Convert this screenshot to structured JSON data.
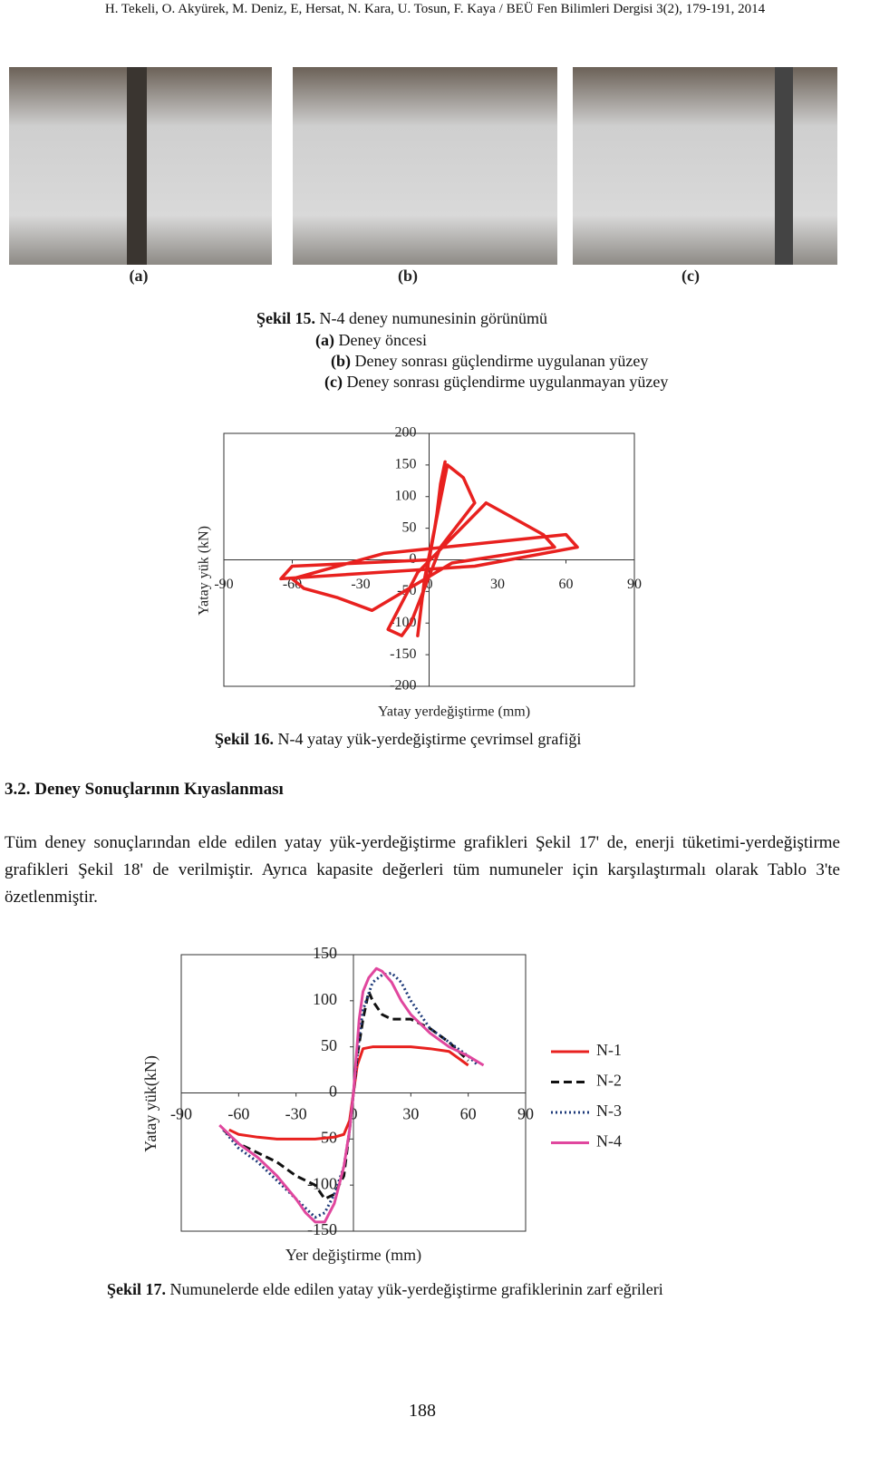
{
  "header": "H. Tekeli, O. Akyürek, M. Deniz, E, Hersat, N. Kara, U. Tosun, F. Kaya / BEÜ Fen Bilimleri Dergisi 3(2), 179-191, 2014",
  "figure15": {
    "panels": [
      "(a)",
      "(b)",
      "(c)"
    ],
    "caption": [
      {
        "label": "Şekil 15.",
        "text": " N-4 deney numunesinin görünümü"
      },
      {
        "label": "(a)",
        "text": " Deney öncesi"
      },
      {
        "label": "(b)",
        "text": " Deney sonrası güçlendirme uygulanan yüzey"
      },
      {
        "label": "(c)",
        "text": " Deney sonrası güçlendirme uygulanmayan yüzey"
      }
    ]
  },
  "chart_data": [
    {
      "type": "line",
      "caption_label": "Şekil 16.",
      "caption": " N-4 yatay yük-yerdeğiştirme çevrimsel grafiği",
      "xlabel": "Yatay yerdeğiştirme (mm)",
      "ylabel": "Yatay yük (kN)",
      "x": [
        0,
        3,
        5,
        7,
        2,
        -3,
        -5,
        -2,
        8,
        15,
        20,
        5,
        -8,
        -12,
        -18,
        -5,
        25,
        40,
        50,
        55,
        10,
        -25,
        -40,
        -55,
        -60,
        -20,
        60,
        65,
        20,
        -65,
        -60,
        0
      ],
      "values": [
        0,
        60,
        120,
        155,
        40,
        -60,
        -120,
        -30,
        150,
        130,
        90,
        20,
        -100,
        -120,
        -110,
        -20,
        90,
        60,
        40,
        20,
        -5,
        -80,
        -60,
        -45,
        -30,
        10,
        40,
        20,
        -10,
        -30,
        -10,
        0
      ],
      "color": "#e8211f",
      "xlim": [
        -90,
        90
      ],
      "xticks": [
        -90,
        -60,
        -30,
        0,
        30,
        60,
        90
      ],
      "ylim": [
        -200,
        200
      ],
      "yticks": [
        -200,
        -150,
        -100,
        -50,
        0,
        50,
        100,
        150,
        200
      ]
    },
    {
      "type": "line",
      "caption_label": "Şekil 17.",
      "caption": " Numunelerde elde edilen yatay yük-yerdeğiştirme grafiklerinin zarf eğrileri",
      "xlabel": "Yer değiştirme  (mm)",
      "ylabel": "Yatay  yük(kN)",
      "legend": "right",
      "xlim": [
        -90,
        90
      ],
      "xticks": [
        -90,
        -60,
        -30,
        0,
        30,
        60,
        90
      ],
      "ylim": [
        -150,
        150
      ],
      "yticks": [
        -150,
        -100,
        -50,
        0,
        50,
        100,
        150
      ],
      "series": [
        {
          "name": "N-1",
          "color": "#e8211f",
          "style": "solid",
          "x": [
            -65,
            -60,
            -50,
            -40,
            -30,
            -20,
            -10,
            -5,
            -2,
            0,
            2,
            5,
            10,
            20,
            30,
            40,
            50,
            60
          ],
          "values": [
            -40,
            -45,
            -48,
            -50,
            -50,
            -50,
            -48,
            -45,
            -30,
            0,
            30,
            48,
            50,
            50,
            50,
            48,
            45,
            30
          ]
        },
        {
          "name": "N-2",
          "color": "#111111",
          "style": "dashed",
          "x": [
            -68,
            -60,
            -50,
            -40,
            -30,
            -20,
            -15,
            -10,
            -5,
            -2,
            0,
            2,
            5,
            8,
            10,
            15,
            20,
            30,
            40,
            50,
            60
          ],
          "values": [
            -40,
            -55,
            -65,
            -75,
            -90,
            -100,
            -115,
            -110,
            -90,
            -40,
            0,
            40,
            80,
            110,
            100,
            85,
            80,
            80,
            70,
            55,
            35
          ]
        },
        {
          "name": "N-3",
          "color": "#1f3b7a",
          "style": "dotted",
          "x": [
            -68,
            -60,
            -50,
            -40,
            -30,
            -25,
            -20,
            -15,
            -10,
            -5,
            -2,
            0,
            3,
            5,
            10,
            15,
            20,
            25,
            30,
            40,
            50,
            60,
            65
          ],
          "values": [
            -40,
            -60,
            -75,
            -95,
            -115,
            -125,
            -135,
            -130,
            -110,
            -80,
            -40,
            0,
            60,
            90,
            120,
            128,
            130,
            120,
            100,
            70,
            55,
            40,
            30
          ]
        },
        {
          "name": "N-4",
          "color": "#e0479e",
          "style": "solid",
          "x": [
            -70,
            -60,
            -50,
            -40,
            -30,
            -25,
            -20,
            -15,
            -10,
            -5,
            -2,
            0,
            3,
            5,
            8,
            12,
            15,
            20,
            25,
            30,
            40,
            50,
            60,
            68
          ],
          "values": [
            -35,
            -55,
            -70,
            -90,
            -115,
            -130,
            -140,
            -140,
            -120,
            -80,
            -40,
            0,
            80,
            110,
            125,
            135,
            132,
            120,
            100,
            85,
            65,
            50,
            40,
            30
          ]
        }
      ]
    }
  ],
  "section": {
    "heading": "3.2. Deney Sonuçlarının Kıyaslanması",
    "paragraph": "Tüm deney sonuçlarından elde edilen yatay yük-yerdeğiştirme grafikleri Şekil 17' de, enerji tüketimi-yerdeğiştirme grafikleri Şekil 18' de verilmiştir. Ayrıca kapasite değerleri tüm numuneler için karşılaştırmalı olarak Tablo 3'te özetlenmiştir."
  },
  "page_number": "188"
}
